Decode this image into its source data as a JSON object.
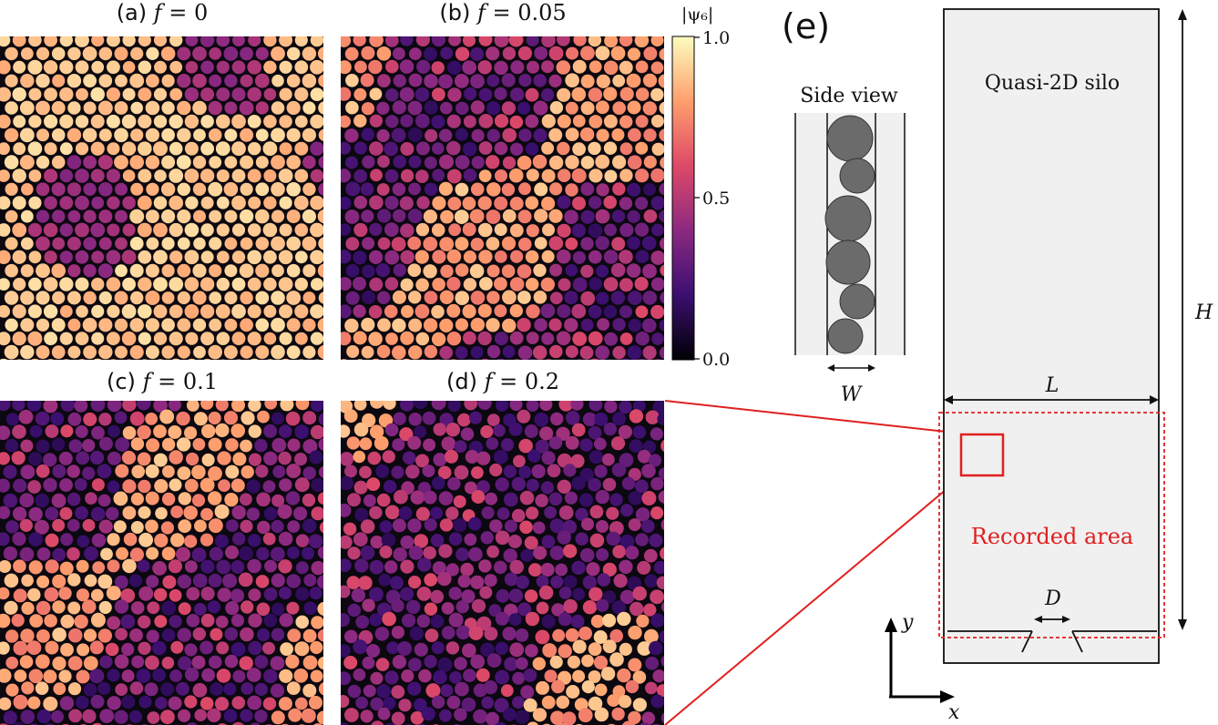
{
  "panels": [
    {
      "label": "(a)",
      "var": "f",
      "eq": " = 0",
      "f": 0
    },
    {
      "label": "(b)",
      "var": "f",
      "eq": " = 0.05",
      "f": 0.05
    },
    {
      "label": "(c)",
      "var": "f",
      "eq": " = 0.1",
      "f": 0.1
    },
    {
      "label": "(d)",
      "var": "f",
      "eq": " = 0.2",
      "f": 0.2
    }
  ],
  "colorbar": {
    "label": "|ψ₆|",
    "ticks": [
      "1.0",
      "0.5",
      "0.0"
    ],
    "range": [
      0,
      1
    ],
    "colormap": [
      "#000004",
      "#3b0f70",
      "#8c2981",
      "#de4968",
      "#fe9f6d",
      "#fcfdbf"
    ]
  },
  "schematic": {
    "panel_label": "(e)",
    "title": "Quasi-2D silo",
    "side_view_label": "Side view",
    "width_label": "W",
    "length_label": "L",
    "height_label": "H",
    "outlet_label": "D",
    "recorded_area_label": "Recorded area",
    "x_axis": "x",
    "y_axis": "y",
    "highlight_color": "#e02020"
  }
}
